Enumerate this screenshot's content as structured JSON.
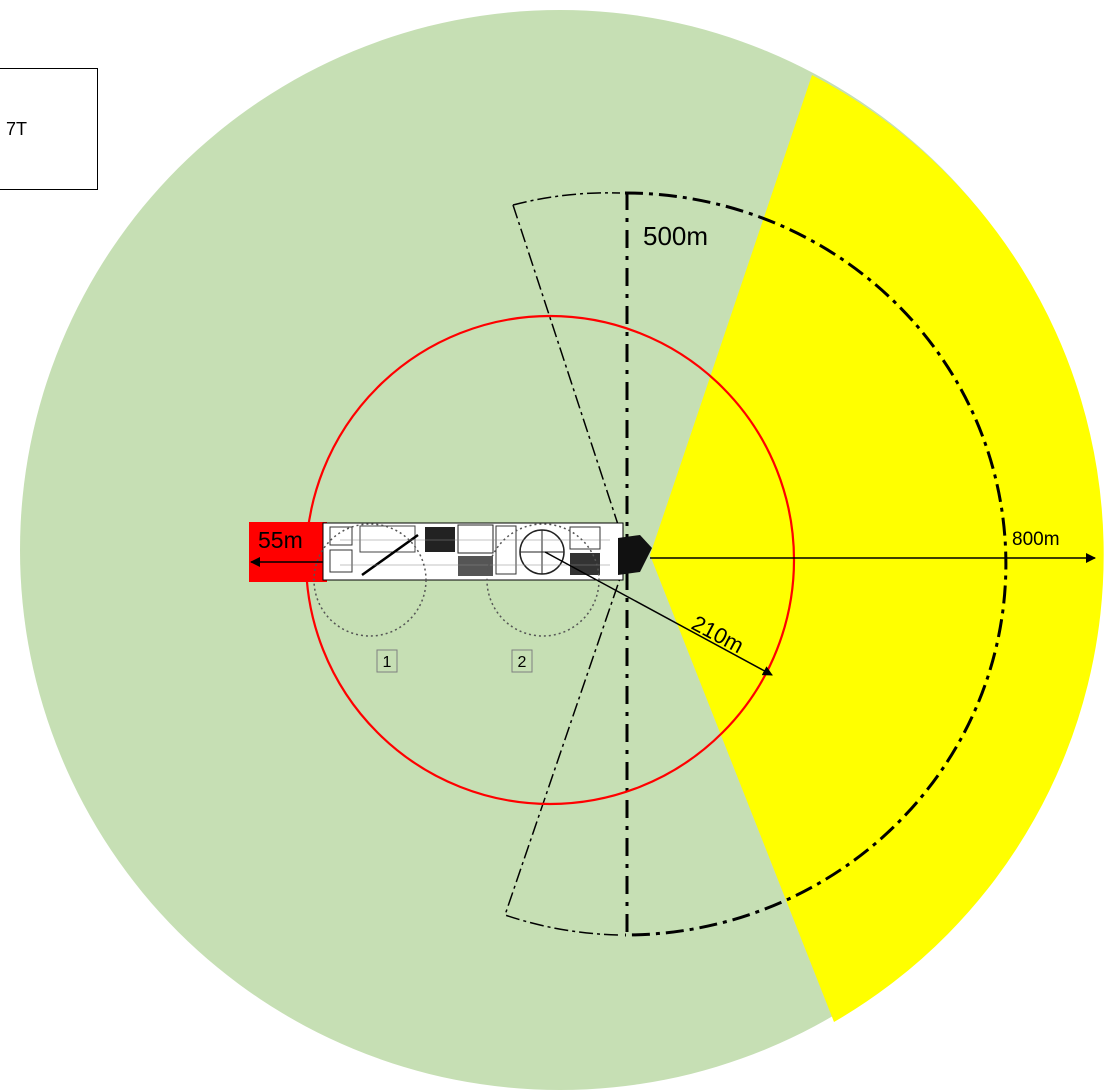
{
  "legend_box": {
    "label": "7T"
  },
  "labels": {
    "r_red_sector": "55m",
    "r_red_circle": "210m",
    "r_dashdot": "500m",
    "r_outer": "800m",
    "cargo_1": "1",
    "cargo_2": "2"
  },
  "colors": {
    "outer_zone": "#c6dfb4",
    "yellow_sector": "#ffff00",
    "red_circle": "#ff0000",
    "red_sector": "#ff0000",
    "lines": "#000000",
    "cargo_label": "#7f7f7f"
  },
  "icons": {
    "vessel": "ship-deck-plan-icon",
    "hull_bow": "bow-icon"
  }
}
